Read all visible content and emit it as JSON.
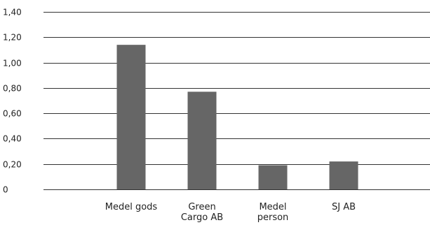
{
  "chart_data": {
    "type": "bar",
    "categories": [
      [
        "Medel gods"
      ],
      [
        "Green",
        "Cargo AB"
      ],
      [
        "Medel",
        "person"
      ],
      [
        "SJ AB"
      ]
    ],
    "values": [
      1.14,
      0.77,
      0.19,
      0.22
    ],
    "title": "",
    "xlabel": "",
    "ylabel": "",
    "ylim": [
      0,
      1.4
    ],
    "yticks": [
      0,
      0.2,
      0.4,
      0.6,
      0.8,
      1.0,
      1.2,
      1.4
    ],
    "ytick_labels": [
      "0",
      "0,20",
      "0,40",
      "0,60",
      "0,80",
      "1,00",
      "1,20",
      "1,40"
    ],
    "grid": true,
    "legend": "none",
    "bar_color": "#666666"
  }
}
